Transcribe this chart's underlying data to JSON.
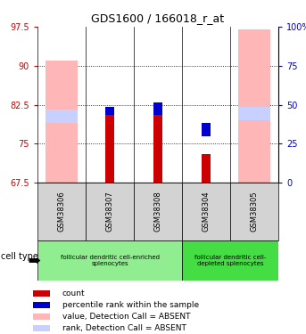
{
  "title": "GDS1600 / 166018_r_at",
  "samples": [
    "GSM38306",
    "GSM38307",
    "GSM38308",
    "GSM38304",
    "GSM38305"
  ],
  "ylim_left": [
    67.5,
    97.5
  ],
  "ylim_right": [
    0,
    100
  ],
  "yticks_left": [
    67.5,
    75.0,
    82.5,
    90.0,
    97.5
  ],
  "ytick_labels_left": [
    "67.5",
    "75",
    "82.5",
    "90",
    "97.5"
  ],
  "yticks_right": [
    0,
    25,
    50,
    75,
    100
  ],
  "ytick_labels_right": [
    "0",
    "25",
    "50",
    "75",
    "100%"
  ],
  "left_tick_color": "#cc0000",
  "right_tick_color": "#0000cc",
  "bar_bottom": 67.5,
  "pink_bars_height": [
    23.5,
    0.0,
    0.0,
    0.0,
    29.5
  ],
  "red_bars_height": [
    0.0,
    13.5,
    13.0,
    5.5,
    0.0
  ],
  "blue_bars_bottom": [
    79.5,
    80.5,
    80.5,
    76.5,
    79.5
  ],
  "blue_bars_height": [
    0.0,
    1.5,
    2.5,
    2.5,
    0.0
  ],
  "lavender_bars_bottom": [
    79.0,
    0.0,
    0.0,
    0.0,
    79.5
  ],
  "lavender_bars_height": [
    2.5,
    0.0,
    0.0,
    0.0,
    2.5
  ],
  "absent_pink_color": "#ffb6b6",
  "absent_lavender_color": "#c8d0ff",
  "count_red_color": "#cc0000",
  "rank_blue_color": "#0000cc",
  "sample_bg_color": "#d3d3d3",
  "group1_label": "follicular dendritic cell-enriched\nsplenocytes",
  "group1_color": "#90ee90",
  "group2_label": "follicular dendritic cell-\ndepleted splenocytes",
  "group2_color": "#44dd44",
  "legend_labels": [
    "count",
    "percentile rank within the sample",
    "value, Detection Call = ABSENT",
    "rank, Detection Call = ABSENT"
  ],
  "legend_colors": [
    "#cc0000",
    "#0000cc",
    "#ffb6b6",
    "#c8d0ff"
  ]
}
